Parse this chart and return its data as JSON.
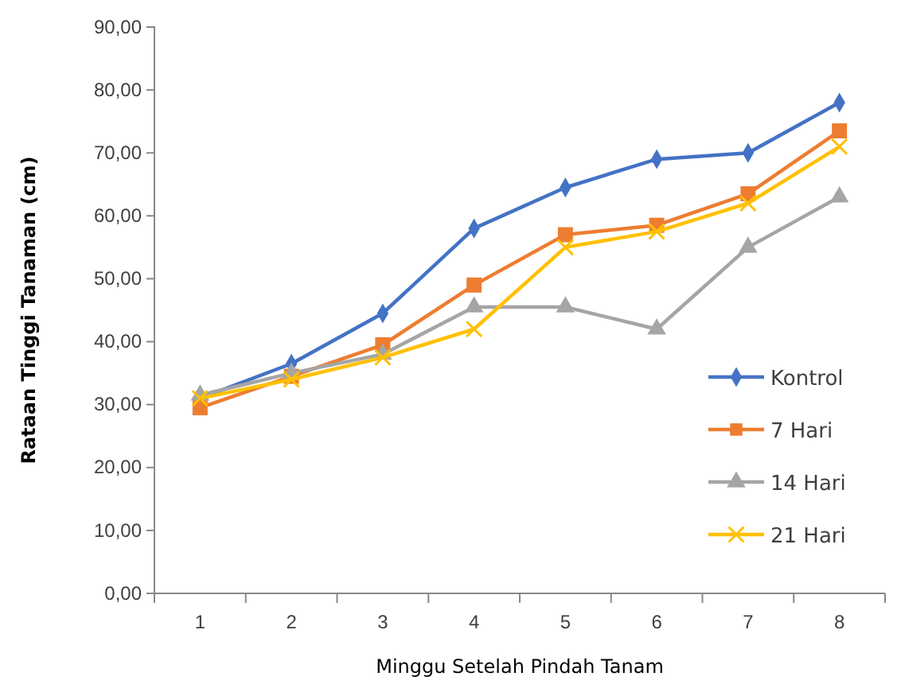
{
  "chart_data": {
    "type": "line",
    "xlabel": "Minggu Setelah Pindah Tanam",
    "ylabel": "Rataan Tinggi Tanaman (cm)",
    "categories": [
      "1",
      "2",
      "3",
      "4",
      "5",
      "6",
      "7",
      "8"
    ],
    "ylim": [
      0,
      90
    ],
    "yticks": [
      {
        "value": 0,
        "label": "0,00"
      },
      {
        "value": 10,
        "label": "10,00"
      },
      {
        "value": 20,
        "label": "20,00"
      },
      {
        "value": 30,
        "label": "30,00"
      },
      {
        "value": 40,
        "label": "40,00"
      },
      {
        "value": 50,
        "label": "50,00"
      },
      {
        "value": 60,
        "label": "60,00"
      },
      {
        "value": 70,
        "label": "70,00"
      },
      {
        "value": 80,
        "label": "80,00"
      },
      {
        "value": 90,
        "label": "90,00"
      }
    ],
    "legend": "right",
    "grid": false,
    "series": [
      {
        "name": "Kontrol",
        "color": "#4472c4",
        "marker": "diamond",
        "values": [
          31,
          36.5,
          44.5,
          58,
          64.5,
          69,
          70,
          78
        ]
      },
      {
        "name": "7 Hari",
        "color": "#ed7d31",
        "marker": "square",
        "values": [
          29.5,
          34.5,
          39.5,
          49,
          57,
          58.5,
          63.5,
          73.5
        ]
      },
      {
        "name": "14 Hari",
        "color": "#a5a5a5",
        "marker": "triangle",
        "values": [
          31.5,
          35,
          38,
          45.5,
          45.5,
          42,
          55,
          63
        ]
      },
      {
        "name": "21 Hari",
        "color": "#ffc000",
        "marker": "cross",
        "values": [
          31,
          34,
          37.5,
          42,
          55,
          57.5,
          62,
          71
        ]
      }
    ]
  }
}
